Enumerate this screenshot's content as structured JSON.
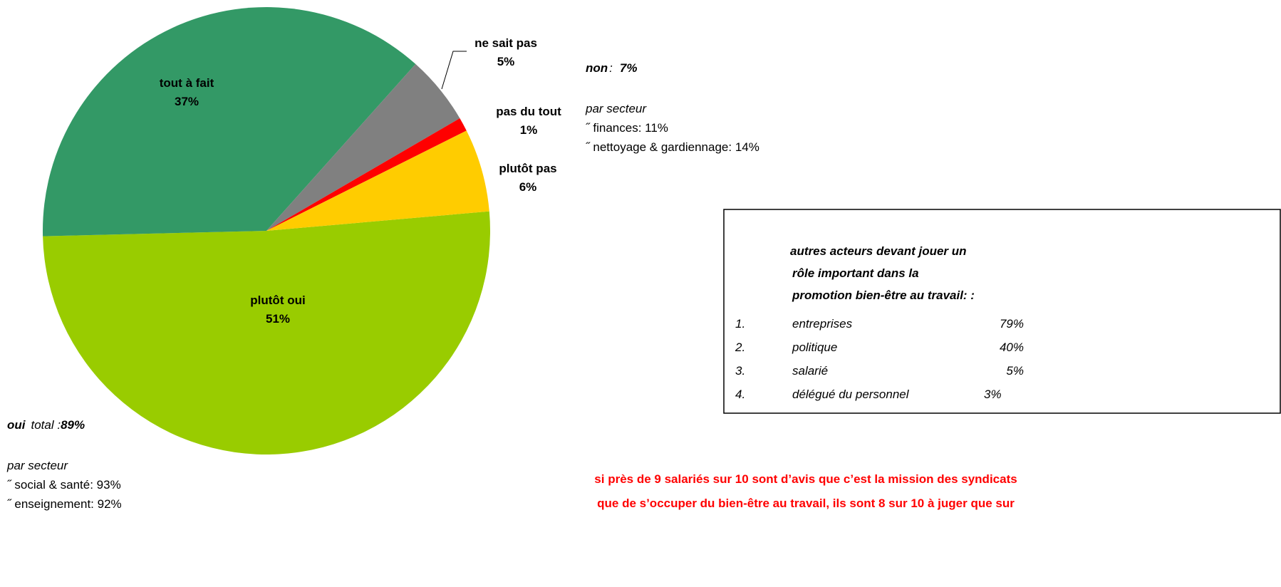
{
  "chart_data": {
    "type": "pie",
    "categories": [
      "plutôt oui",
      "tout à fait",
      "ne sait pas",
      "pas du tout",
      "plutôt pas"
    ],
    "values": [
      51,
      37,
      5,
      1,
      6
    ],
    "value_labels": [
      "51%",
      "37%",
      "5%",
      "1%",
      "6%"
    ],
    "colors": [
      "#99cc00",
      "#339966",
      "#808080",
      "#ff0000",
      "#ffcc00"
    ],
    "annotations": {
      "non": {
        "word": "non",
        "sep": ":",
        "total": "7%",
        "heading": "par secteur",
        "items": [
          "˝ finances: 11%",
          "˝ nettoyage & gardiennage: 14%"
        ]
      },
      "oui": {
        "word": "oui",
        "sep": "total :",
        "total": "89%",
        "heading": "par secteur",
        "items": [
          "˝ social & santé: 93%",
          "˝ enseignement: 92%"
        ]
      },
      "box": {
        "title": [
          "autres acteurs devant jouer un",
          "rôle important dans la",
          "promotion bien-être au travail: :"
        ],
        "items": [
          {
            "num": "1.",
            "name": "entreprises",
            "pct": "79%"
          },
          {
            "num": "2.",
            "name": "politique",
            "pct": "40%"
          },
          {
            "num": "3.",
            "name": "salarié",
            "pct": "5%"
          },
          {
            "num": "4.",
            "name": "délégué du personnel",
            "pct": "3%"
          }
        ]
      },
      "conclusion": [
        "si près de 9 salariés sur 10 sont d’avis que c’est la mission des syndicats",
        "que de s’occuper du bien-être au travail, ils sont 8 sur 10 à juger que sur"
      ]
    }
  }
}
